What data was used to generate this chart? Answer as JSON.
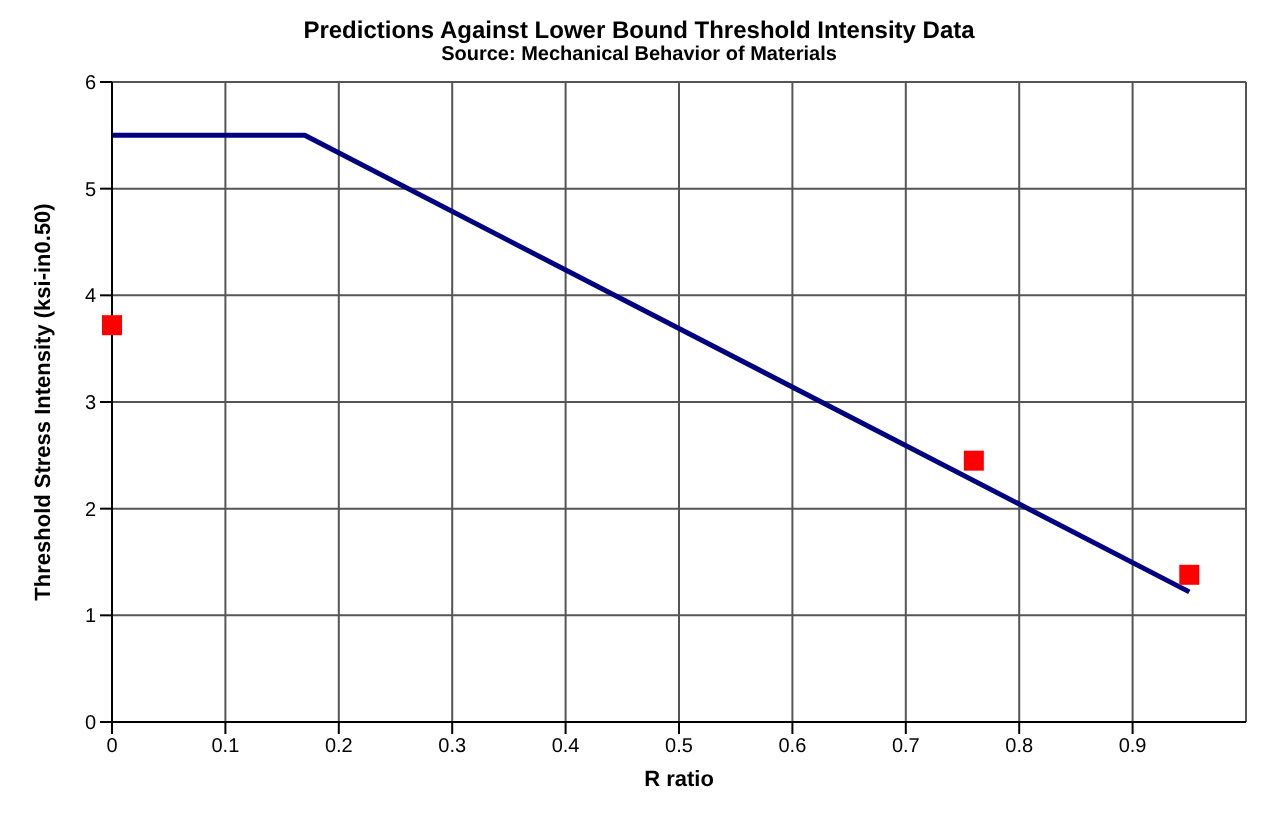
{
  "chart_data": {
    "type": "scatter",
    "title": "Predictions Against Lower Bound Threshold Intensity Data",
    "subtitle": "Source: Mechanical Behavior of Materials",
    "xlabel": "R ratio",
    "ylabel": "Threshold Stress Intensity (ksi-in0.50)",
    "xlim": [
      0,
      1
    ],
    "xticks": [
      0,
      0.1,
      0.2,
      0.3,
      0.4,
      0.5,
      0.6,
      0.7,
      0.8,
      0.9
    ],
    "ylim": [
      0,
      6
    ],
    "yticks": [
      0,
      1,
      2,
      3,
      4,
      5,
      6
    ],
    "grid": true,
    "series": [
      {
        "type": "line",
        "color": "#000080",
        "x": [
          0,
          0.17,
          0.95
        ],
        "values": [
          5.5,
          5.5,
          1.22
        ],
        "marker": "none",
        "line_style": "solid"
      },
      {
        "type": "scatter",
        "color": "#ff0000",
        "x": [
          0,
          0.76,
          0.95
        ],
        "values": [
          3.72,
          2.45,
          1.38
        ],
        "marker": "square"
      }
    ]
  }
}
